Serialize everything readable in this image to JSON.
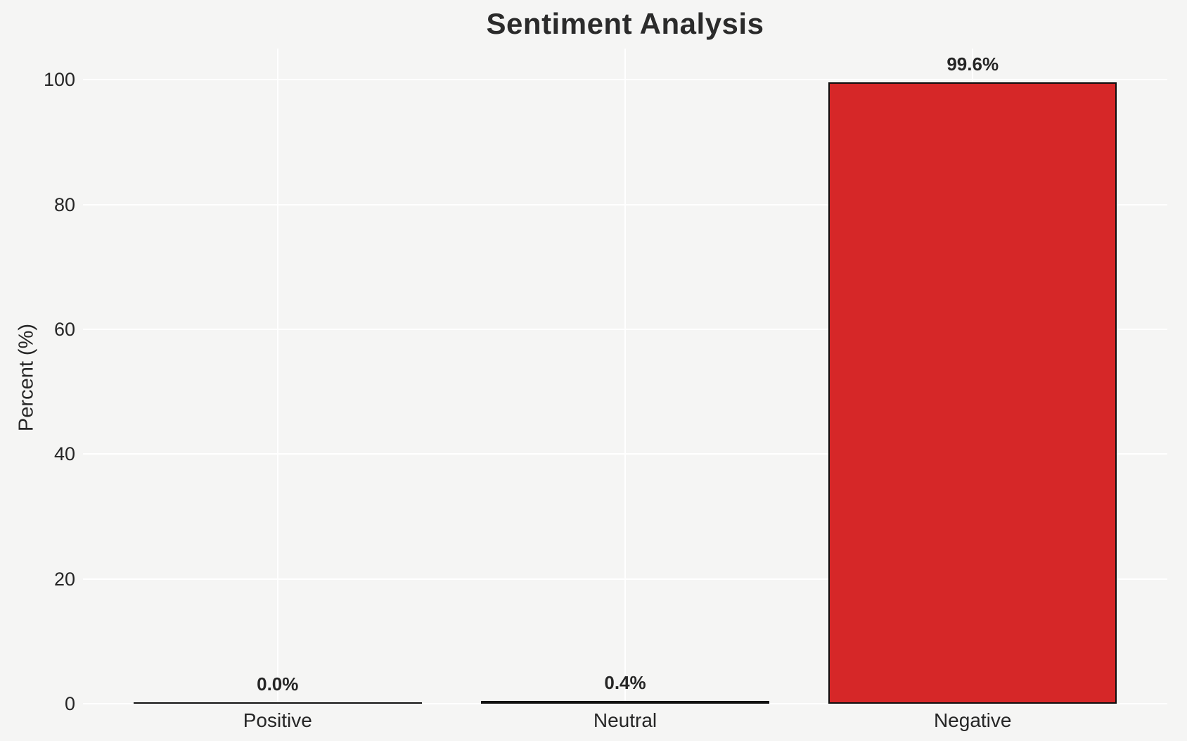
{
  "chart_data": {
    "type": "bar",
    "title": "Sentiment Analysis",
    "ylabel": "Percent (%)",
    "xlabel": "",
    "categories": [
      "Positive",
      "Neutral",
      "Negative"
    ],
    "values": [
      0.0,
      0.4,
      99.6
    ],
    "value_labels": [
      "0.0%",
      "0.4%",
      "99.6%"
    ],
    "yticks": [
      0,
      20,
      40,
      60,
      80,
      100
    ],
    "ytick_labels": [
      "0",
      "20",
      "40",
      "60",
      "80",
      "100"
    ],
    "ylim": [
      0,
      105
    ],
    "grid": "on",
    "legend_position": "none",
    "colors": {
      "bar_fill": "#d62728",
      "bar_edge": "#0e0e0e",
      "background": "#f5f5f4",
      "gridline": "#ffffff",
      "text": "#262626"
    }
  }
}
